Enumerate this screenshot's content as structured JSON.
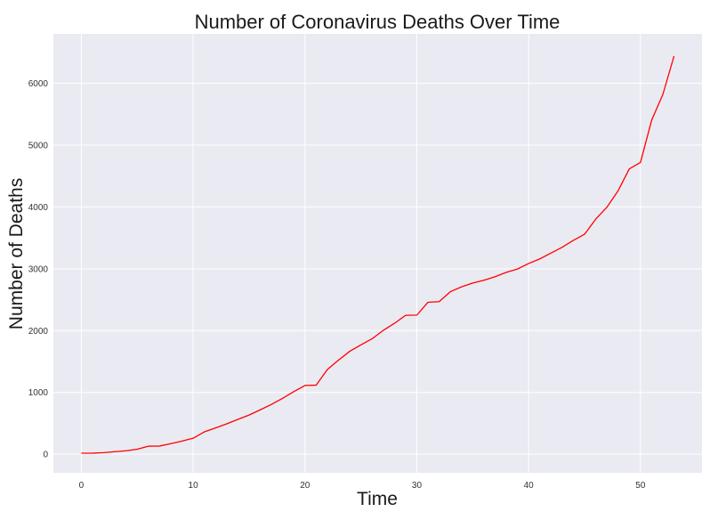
{
  "chart_data": {
    "type": "line",
    "title": "Number of Coronavirus Deaths Over Time",
    "xlabel": "Time",
    "ylabel": "Number of Deaths",
    "xlim": [
      -2.5,
      55.5
    ],
    "ylim": [
      -300,
      6800
    ],
    "xticks": [
      0,
      10,
      20,
      30,
      40,
      50
    ],
    "yticks": [
      0,
      1000,
      2000,
      3000,
      4000,
      5000,
      6000
    ],
    "grid": true,
    "colors": {
      "plot_bg": "#eaeaf2",
      "grid": "#ffffff",
      "line": "#ff0000"
    },
    "series": [
      {
        "color": "#ff0000",
        "x": [
          0,
          1,
          2,
          3,
          4,
          5,
          6,
          7,
          8,
          9,
          10,
          11,
          12,
          13,
          14,
          15,
          16,
          17,
          18,
          19,
          20,
          21,
          22,
          23,
          24,
          25,
          26,
          27,
          28,
          29,
          30,
          31,
          32,
          33,
          34,
          35,
          36,
          37,
          38,
          39,
          40,
          41,
          42,
          43,
          44,
          45,
          46,
          47,
          48,
          49,
          50,
          51,
          52,
          53
        ],
        "y": [
          17,
          18,
          26,
          42,
          56,
          82,
          131,
          133,
          171,
          213,
          259,
          362,
          426,
          492,
          564,
          634,
          719,
          806,
          906,
          1013,
          1113,
          1118,
          1371,
          1523,
          1665,
          1770,
          1868,
          2004,
          2118,
          2247,
          2251,
          2458,
          2469,
          2629,
          2708,
          2770,
          2814,
          2872,
          2942,
          2996,
          3085,
          3160,
          3254,
          3348,
          3460,
          3558,
          3803,
          3996,
          4262,
          4615,
          4720,
          5404,
          5819,
          6440
        ]
      }
    ]
  }
}
